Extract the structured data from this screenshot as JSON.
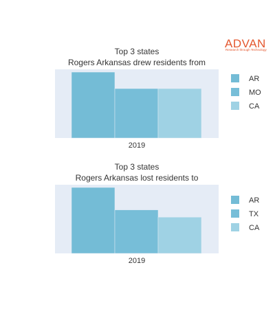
{
  "logo": {
    "wordmark": "ADVAN",
    "tagline": "Research through Technology",
    "color": "#e4572e"
  },
  "colors": {
    "plot_bg": "#e5ecf6",
    "legend_text": "#333333"
  },
  "chart_data": [
    {
      "type": "bar",
      "title": "Top 3 states",
      "subtitle": "Rogers Arkansas drew residents from",
      "categories": [
        "2019"
      ],
      "xlabel": "",
      "ylabel": "",
      "ylim": [
        0,
        100
      ],
      "grid": false,
      "legend_position": "right",
      "series": [
        {
          "name": "AR",
          "values": [
            100
          ],
          "color": "#74bcd6"
        },
        {
          "name": "MO",
          "values": [
            75
          ],
          "color": "#77bed8"
        },
        {
          "name": "CA",
          "values": [
            75
          ],
          "color": "#9fd2e4"
        }
      ]
    },
    {
      "type": "bar",
      "title": "Top 3 states",
      "subtitle": "Rogers Arkansas lost residents to",
      "categories": [
        "2019"
      ],
      "xlabel": "",
      "ylabel": "",
      "ylim": [
        0,
        100
      ],
      "grid": false,
      "legend_position": "right",
      "series": [
        {
          "name": "AR",
          "values": [
            100
          ],
          "color": "#74bcd6"
        },
        {
          "name": "TX",
          "values": [
            66
          ],
          "color": "#77bed8"
        },
        {
          "name": "CA",
          "values": [
            55
          ],
          "color": "#9fd2e4"
        }
      ]
    }
  ]
}
